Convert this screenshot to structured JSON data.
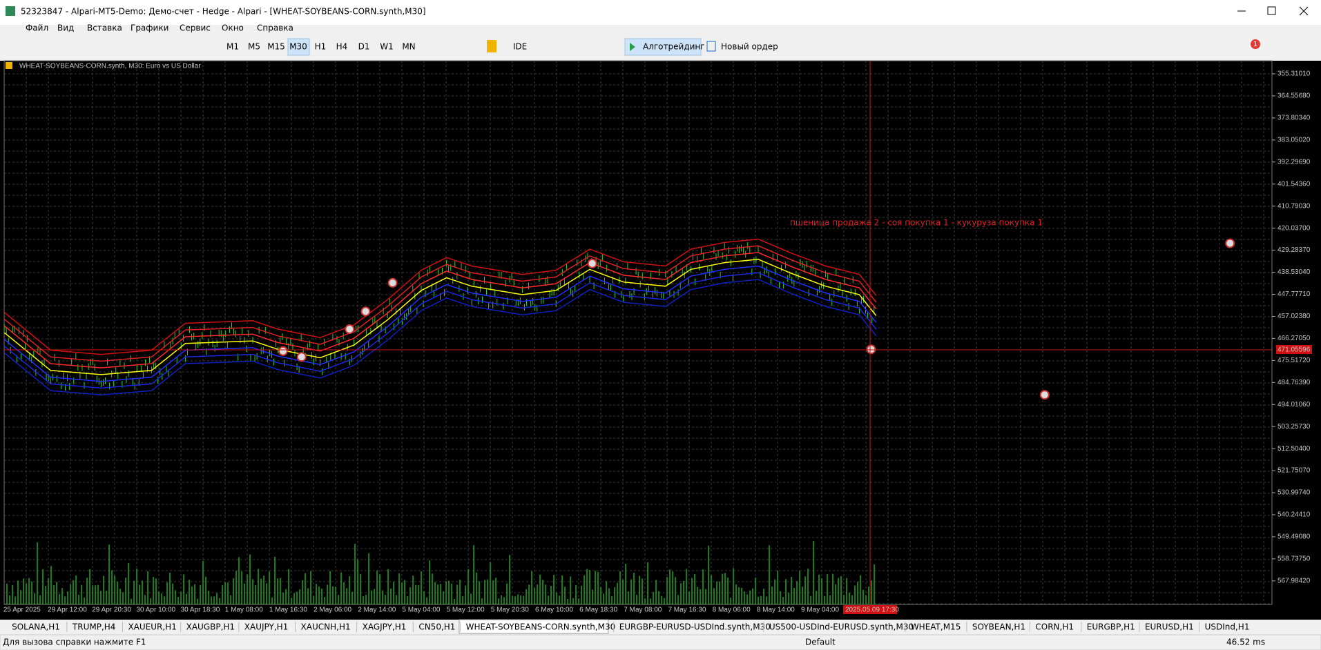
{
  "window": {
    "title": "52323847 - Alpari-MT5-Demo: Демо-счет - Hedge - Alpari - [WHEAT-SOYBEANS-CORN.synth,M30]"
  },
  "menu": [
    "Файл",
    "Вид",
    "Вставка",
    "Графики",
    "Сервис",
    "Окно",
    "Справка"
  ],
  "toolbar": {
    "timeframes": [
      "M1",
      "M5",
      "M15",
      "M30",
      "H1",
      "H4",
      "D1",
      "W1",
      "MN"
    ],
    "ide": "IDE",
    "algo": "Алготрейдинг",
    "new_order": "Новый ордер",
    "badge": "1"
  },
  "chart": {
    "label": "WHEAT-SOYBEANS-CORN.synth, M30:  Euro vs US Dollar",
    "annotation": "пшеница продажа 2 - соя покупка 1 - кукуруза покупка 1",
    "price_labels": [
      "355.31010",
      "364.55680",
      "373.80340",
      "383.05020",
      "392.29690",
      "401.54360",
      "410.79030",
      "420.03700",
      "429.28370",
      "438.53040",
      "447.77710",
      "457.02380",
      "466.27050",
      "475.51720",
      "484.76390",
      "494.01060",
      "503.25730",
      "512.50400",
      "521.75070",
      "530.99740",
      "540.24410",
      "549.49080",
      "558.73750",
      "567.98420"
    ],
    "current_price": "471.05596",
    "time_labels": [
      "25 Apr 2025",
      "29 Apr 12:00",
      "29 Apr 20:30",
      "30 Apr 10:00",
      "30 Apr 18:30",
      "1 May 08:00",
      "1 May 16:30",
      "2 May 06:00",
      "2 May 14:00",
      "5 May 04:00",
      "5 May 12:00",
      "5 May 20:30",
      "6 May 10:00",
      "6 May 18:30",
      "7 May 08:00",
      "7 May 16:30",
      "8 May 06:00",
      "8 May 14:00",
      "9 May 04:00"
    ],
    "cursor_time": "2025.05.09 17:30"
  },
  "tabs": [
    "SOLANA,H1",
    "TRUMP,H4",
    "XAUEUR,H1",
    "XAUGBP,H1",
    "XAUJPY,H1",
    "XAUCNH,H1",
    "XAGJPY,H1",
    "CN50,H1",
    "WHEAT-SOYBEANS-CORN.synth,M30",
    "EURGBP-EURUSD-USDInd.synth,M30",
    "US500-USDInd-EURUSD.synth,M30",
    "WHEAT,M15",
    "SOYBEAN,H1",
    "CORN,H1",
    "EURGBP,H1",
    "EURUSD,H1",
    "USDInd,H1"
  ],
  "status": {
    "help": "Для вызова справки нажмите F1",
    "profile": "Default",
    "ping": "46.52 ms"
  }
}
